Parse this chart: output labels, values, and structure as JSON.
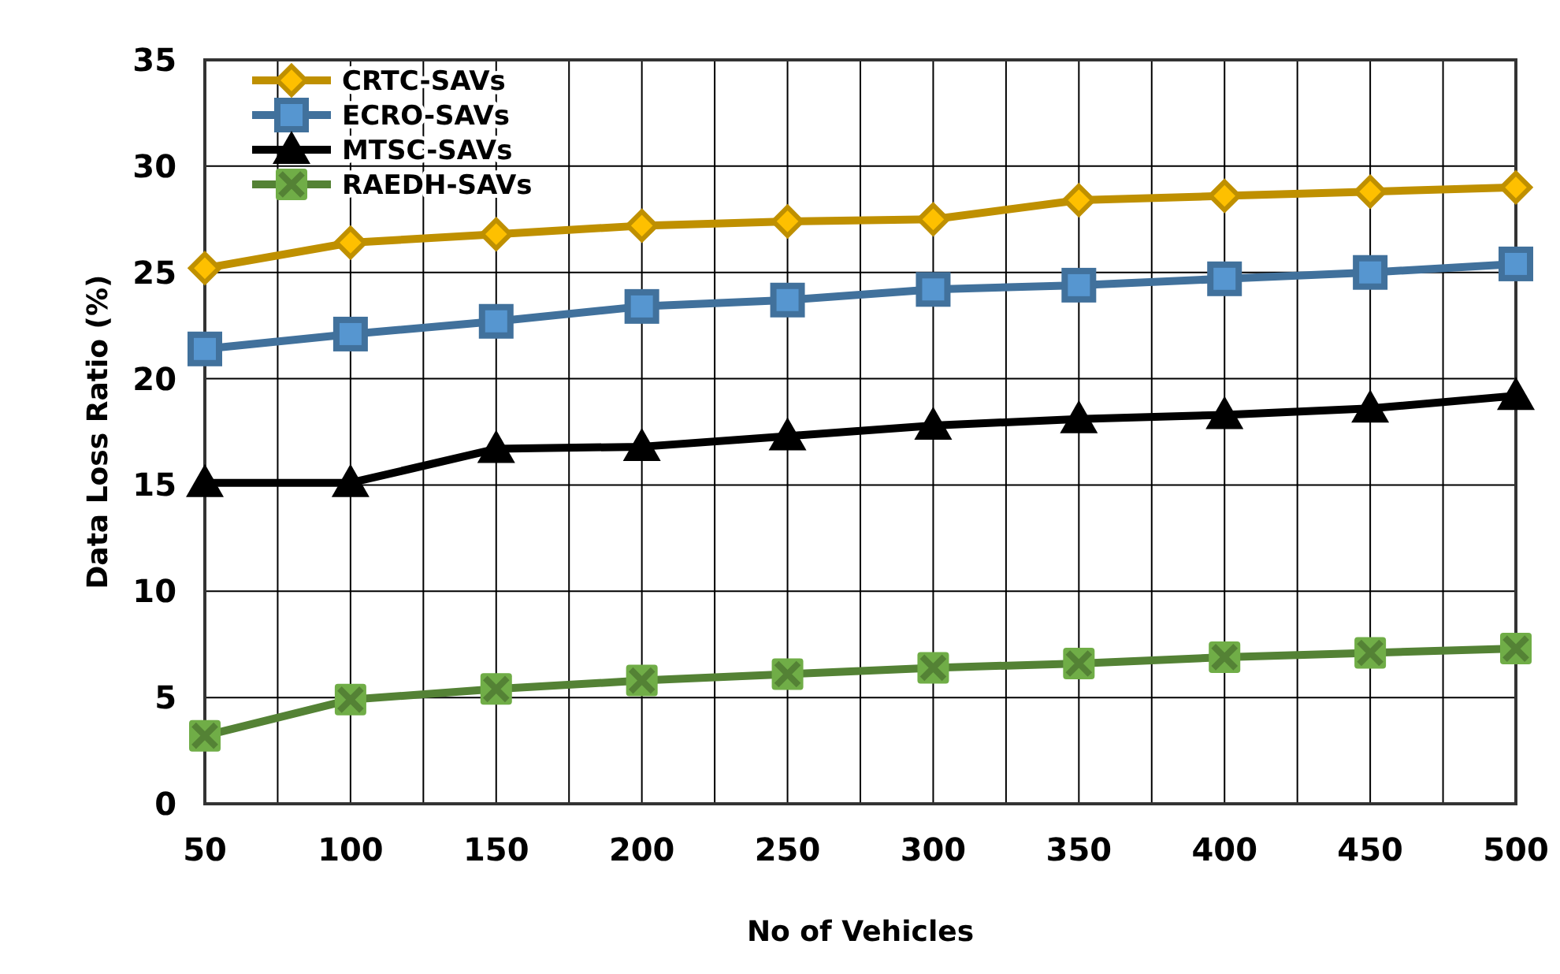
{
  "chart_data": {
    "type": "line",
    "xlabel": "No of Vehicles",
    "ylabel": "Data Loss Ratio (%)",
    "x": [
      50,
      100,
      150,
      200,
      250,
      300,
      350,
      400,
      450,
      500
    ],
    "xlim": [
      50,
      500
    ],
    "xticks": [
      50,
      {
        "value": 75,
        "label": null
      },
      100,
      {
        "value": 125,
        "label": null
      },
      150,
      {
        "value": 175,
        "label": null
      },
      200,
      {
        "value": 225,
        "label": null
      },
      250,
      {
        "value": 275,
        "label": null
      },
      300,
      {
        "value": 325,
        "label": null
      },
      350,
      {
        "value": 375,
        "label": null
      },
      400,
      {
        "value": 425,
        "label": null
      },
      450,
      {
        "value": 475,
        "label": null
      },
      500
    ],
    "ylim": [
      0,
      35
    ],
    "yticks": [
      0,
      5,
      10,
      15,
      20,
      25,
      30,
      35
    ],
    "grid": true,
    "legend": "top left",
    "line_style": "solid",
    "series": [
      {
        "name": "CRTC-SAVs",
        "color": "#bf9000",
        "marker": "diamond",
        "values": [
          25.2,
          26.4,
          26.8,
          27.2,
          27.4,
          27.5,
          28.4,
          28.6,
          28.8,
          29.0
        ]
      },
      {
        "name": "ECRO-SAVs",
        "color": "#41719c",
        "marker": "square",
        "values": [
          21.4,
          22.1,
          22.7,
          23.4,
          23.7,
          24.2,
          24.4,
          24.7,
          25.0,
          25.4
        ]
      },
      {
        "name": "MTSC-SAVs",
        "color": "#000000",
        "marker": "triangle",
        "values": [
          15.1,
          15.1,
          16.7,
          16.8,
          17.3,
          17.8,
          18.1,
          18.3,
          18.6,
          19.2
        ]
      },
      {
        "name": "RAEDH-SAVs",
        "color": "#548235",
        "marker": "cross",
        "values": [
          3.2,
          4.9,
          5.4,
          5.8,
          6.1,
          6.4,
          6.6,
          6.9,
          7.1,
          7.3
        ]
      }
    ]
  }
}
